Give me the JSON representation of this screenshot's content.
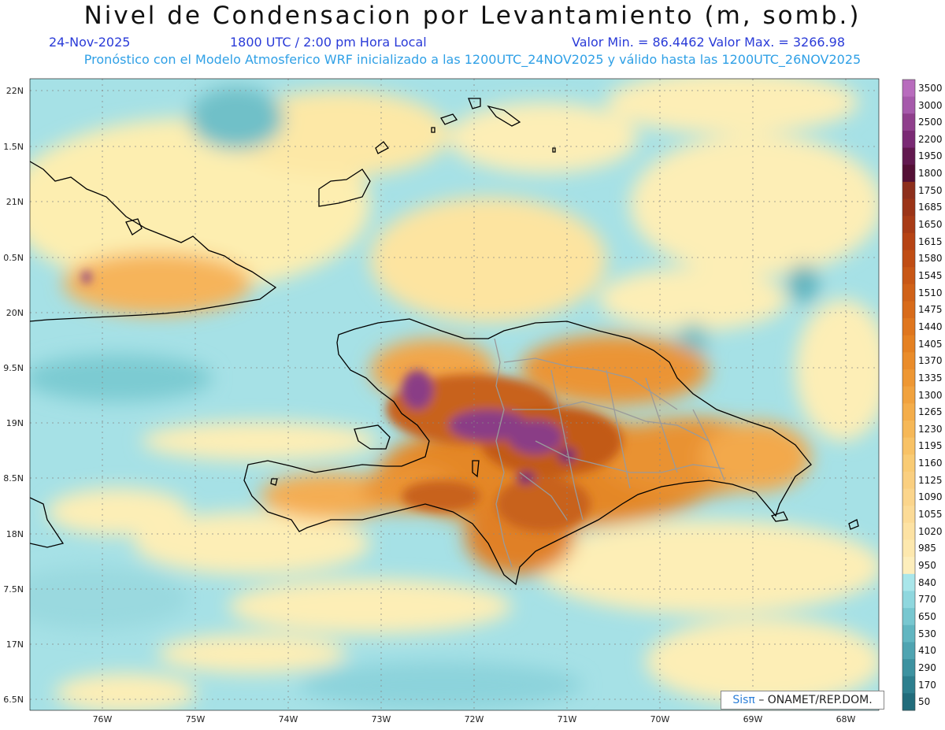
{
  "title": "Nivel de Condensacion por Levantamiento (m, somb.)",
  "header": {
    "date": "24-Nov-2025",
    "time": "1800 UTC / 2:00 pm Hora Local",
    "min_max": "Valor Min. = 86.4462   Valor Max. = 3266.98",
    "model_line": "Pronóstico con el Modelo Atmosferico WRF inicializado a las 1200UTC_24NOV2025 y válido hasta las  1200UTC_26NOV2025"
  },
  "axes": {
    "lat_labels": [
      "22N",
      "1.5N",
      "21N",
      "0.5N",
      "20N",
      "9.5N",
      "19N",
      "8.5N",
      "18N",
      "7.5N",
      "17N",
      "6.5N"
    ],
    "lon_labels": [
      "76W",
      "75W",
      "74W",
      "73W",
      "72W",
      "71W",
      "70W",
      "69W",
      "68W"
    ]
  },
  "colorbar": {
    "levels": [
      "3500",
      "3000",
      "2500",
      "2200",
      "1950",
      "1800",
      "1750",
      "1685",
      "1650",
      "1615",
      "1580",
      "1545",
      "1510",
      "1475",
      "1440",
      "1405",
      "1370",
      "1335",
      "1300",
      "1265",
      "1230",
      "1195",
      "1160",
      "1125",
      "1090",
      "1055",
      "1020",
      "985",
      "950",
      "840",
      "770",
      "650",
      "530",
      "410",
      "290",
      "170",
      "50"
    ],
    "colors": [
      "#b86cbd",
      "#a65aab",
      "#8f3f8c",
      "#7a2a74",
      "#62194f",
      "#541035",
      "#8d2f1c",
      "#9b3417",
      "#a83b16",
      "#b64314",
      "#c04d14",
      "#c85716",
      "#d06118",
      "#d86b1a",
      "#df761e",
      "#e58122",
      "#ea8c2a",
      "#ee9733",
      "#f1a23e",
      "#f4ad4a",
      "#f6b858",
      "#f8c266",
      "#f9cb74",
      "#facf80",
      "#fbd58c",
      "#fcdb97",
      "#fde2a3",
      "#fde8ae",
      "#fdeebc",
      "#a9e6ea",
      "#8fd7de",
      "#78c7d0",
      "#62b6c1",
      "#4fa4b1",
      "#3d92a0",
      "#2d7f8e",
      "#216c7b"
    ]
  },
  "credit": {
    "brand": "Sisπ",
    "text": "– ONAMET/REP.DOM."
  }
}
